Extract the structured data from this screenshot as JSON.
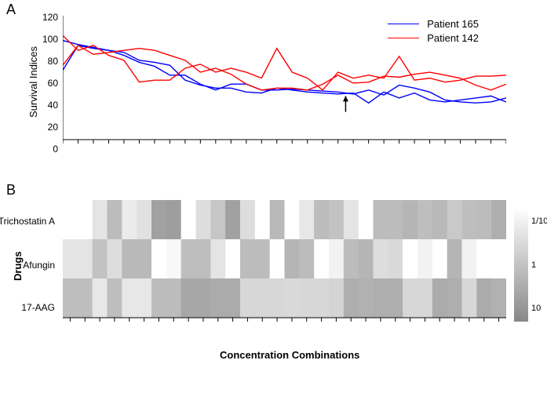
{
  "panelA": {
    "label": "A",
    "title_fontsize": 18,
    "ylabel": "Survival Indices",
    "ylabel_fontsize": 13,
    "ylim": [
      0,
      125
    ],
    "ytick_step": 20,
    "yticks": [
      0,
      20,
      40,
      60,
      80,
      100,
      120
    ],
    "n_x": 30,
    "legend": {
      "entries": [
        {
          "color": "#0000ff",
          "label": "Patient 165"
        },
        {
          "color": "#ff0000",
          "label": "Patient 142"
        }
      ]
    },
    "series": [
      {
        "name": "Patient 165 (a)",
        "color": "#0000ff",
        "width": 1.4,
        "y": [
          70,
          95,
          92,
          90,
          88,
          80,
          78,
          75,
          60,
          55,
          52,
          52,
          48,
          47,
          52,
          50,
          48,
          47,
          46,
          47,
          37,
          48,
          42,
          47,
          40,
          38,
          40,
          42,
          44,
          38
        ]
      },
      {
        "name": "Patient 165 (b)",
        "color": "#0000ff",
        "width": 1.4,
        "y": [
          100,
          96,
          93,
          90,
          85,
          78,
          74,
          65,
          65,
          56,
          50,
          56,
          56,
          50,
          50,
          51,
          50,
          49,
          48,
          46,
          50,
          45,
          55,
          52,
          48,
          40,
          38,
          37,
          38,
          42
        ]
      },
      {
        "name": "Patient 142 (a)",
        "color": "#ff0000",
        "width": 1.4,
        "y": [
          105,
          90,
          95,
          85,
          80,
          58,
          60,
          60,
          72,
          76,
          68,
          72,
          68,
          62,
          92,
          68,
          62,
          50,
          68,
          62,
          65,
          62,
          84,
          60,
          62,
          58,
          60,
          64,
          64,
          65
        ]
      },
      {
        "name": "Patient 142 (b)",
        "color": "#ff0000",
        "width": 1.4,
        "y": [
          75,
          95,
          86,
          88,
          90,
          92,
          90,
          85,
          80,
          68,
          72,
          66,
          56,
          50,
          52,
          52,
          50,
          56,
          65,
          57,
          58,
          64,
          63,
          66,
          68,
          65,
          62,
          55,
          50,
          56
        ]
      }
    ],
    "arrow": {
      "x_index": 18.5,
      "y_from": 28,
      "y_to": 44,
      "color": "#000000"
    },
    "axis_color": "#000000",
    "background_color": "#ffffff"
  },
  "panelB": {
    "label": "B",
    "ylabel": "Drugs",
    "ylabel_fontsize": 13,
    "ylabel_fontweight": "bold",
    "xlabel": "Concentration Combinations",
    "xlabel_fontsize": 13,
    "xlabel_fontweight": "bold",
    "drugs": [
      "Trichostatin A",
      "Afungin",
      "17-AAG"
    ],
    "n_cols": 30,
    "colorscale": {
      "ticks": [
        "1/10",
        "1",
        "10"
      ],
      "low_color": "#ffffff",
      "high_color": "#888888"
    },
    "cells": [
      [
        0.0,
        0.0,
        0.2,
        0.5,
        0.15,
        0.22,
        0.7,
        0.72,
        0.0,
        0.25,
        0.42,
        0.7,
        0.25,
        0.0,
        0.52,
        0.0,
        0.18,
        0.5,
        0.45,
        0.2,
        0.0,
        0.5,
        0.5,
        0.55,
        0.48,
        0.52,
        0.4,
        0.48,
        0.5,
        0.6
      ],
      [
        0.2,
        0.2,
        0.45,
        0.25,
        0.52,
        0.52,
        0.0,
        0.05,
        0.48,
        0.48,
        0.2,
        0.0,
        0.5,
        0.5,
        0.0,
        0.55,
        0.5,
        0.0,
        0.1,
        0.5,
        0.55,
        0.25,
        0.28,
        0.0,
        0.1,
        0.0,
        0.55,
        0.1,
        0.0,
        0.0
      ],
      [
        0.48,
        0.48,
        0.18,
        0.48,
        0.18,
        0.18,
        0.5,
        0.5,
        0.65,
        0.65,
        0.62,
        0.62,
        0.3,
        0.3,
        0.3,
        0.28,
        0.3,
        0.3,
        0.32,
        0.6,
        0.58,
        0.6,
        0.6,
        0.3,
        0.3,
        0.62,
        0.6,
        0.3,
        0.62,
        0.58
      ]
    ],
    "axis_color": "#000000",
    "background_color": "#ffffff"
  }
}
